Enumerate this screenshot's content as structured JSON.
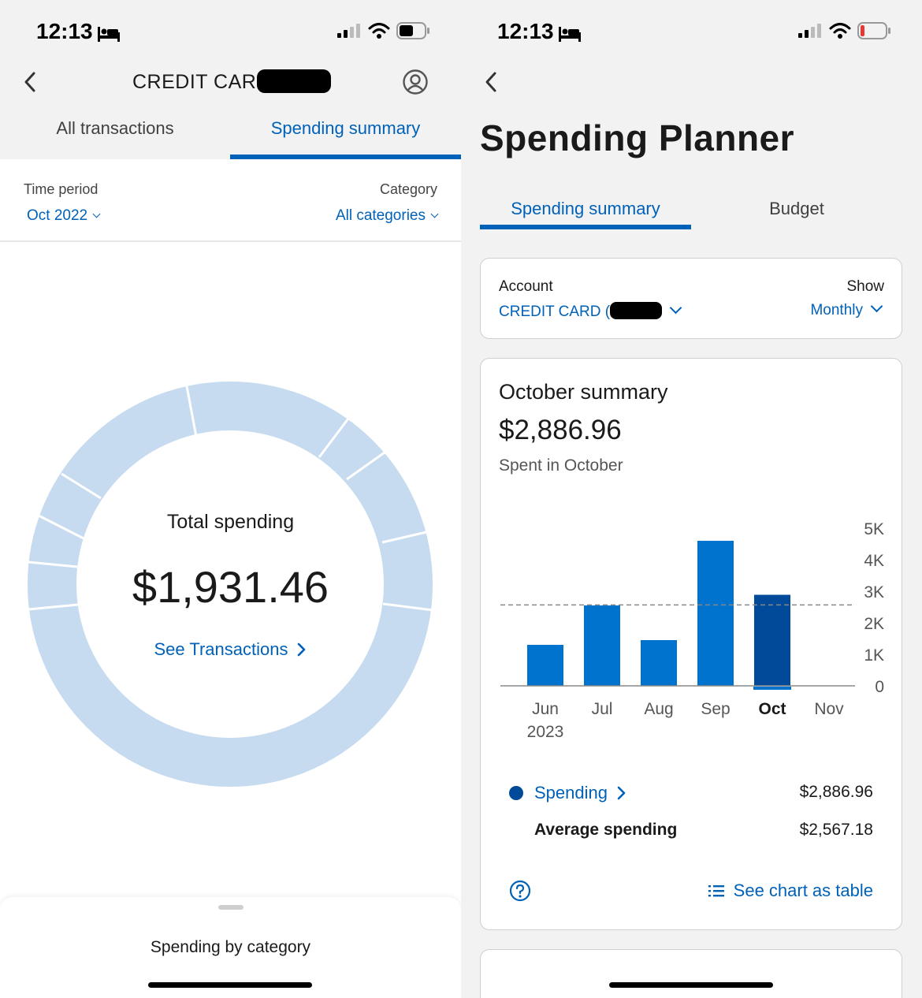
{
  "left": {
    "status": {
      "time": "12:13"
    },
    "header": {
      "title": "CREDIT CARD"
    },
    "tabs": [
      {
        "label": "All transactions"
      },
      {
        "label": "Spending summary"
      }
    ],
    "filters": {
      "time_period_label": "Time period",
      "time_period_value": "Oct 2022",
      "category_label": "Category",
      "category_value": "All categories"
    },
    "donut": {
      "center_label": "Total spending",
      "total": "$1,931.46",
      "see_transactions": "See Transactions"
    },
    "sheet": {
      "title": "Spending by category"
    }
  },
  "right": {
    "status": {
      "time": "12:13"
    },
    "page_title": "Spending Planner",
    "tabs": [
      {
        "label": "Spending summary"
      },
      {
        "label": "Budget"
      }
    ],
    "account": {
      "account_label": "Account",
      "account_value": "CREDIT CARD (",
      "show_label": "Show",
      "show_value": "Monthly"
    },
    "summary": {
      "title": "October summary",
      "amount": "$2,886.96",
      "subtitle": "Spent in October",
      "legend": [
        {
          "label": "Spending",
          "value": "$2,886.96"
        },
        {
          "label": "Average spending",
          "value": "$2,567.18"
        }
      ],
      "see_table": "See chart as table"
    },
    "colors": {
      "accent": "#0061b8",
      "bar": "#0073cf",
      "bar_selected": "#004a99"
    }
  },
  "chart_data": {
    "type": "bar",
    "categories": [
      "Jun 2023",
      "Jul",
      "Aug",
      "Sep",
      "Oct",
      "Nov"
    ],
    "values": [
      1300,
      2550,
      1450,
      4600,
      2886.96,
      0
    ],
    "selected": "Oct",
    "reference_line": {
      "name": "Average spending",
      "value": 2567.18
    },
    "y_ticks": [
      "0",
      "1K",
      "2K",
      "3K",
      "4K",
      "5K"
    ],
    "ylim": [
      0,
      5000
    ],
    "y_axis_side": "right",
    "grid": false,
    "legend": "bottom"
  }
}
